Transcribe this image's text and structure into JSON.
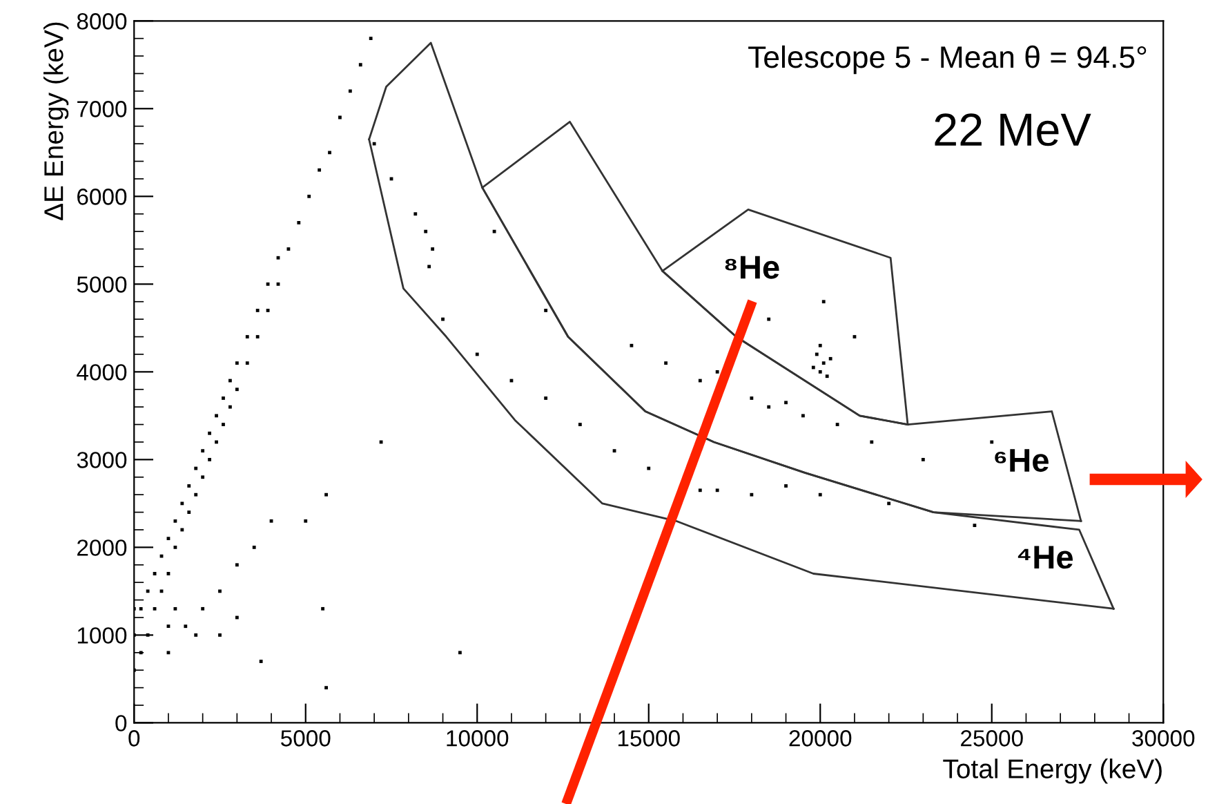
{
  "chart_data": {
    "type": "scatter",
    "title": "Telescope 5 - Mean θ = 94.5°",
    "subtitle": "22 MeV",
    "xlabel": "Total Energy (keV)",
    "ylabel": "ΔE Energy (keV)",
    "xlim": [
      0,
      30000
    ],
    "ylim": [
      0,
      8000
    ],
    "xticks": [
      0,
      5000,
      10000,
      15000,
      20000,
      25000,
      30000
    ],
    "yticks": [
      0,
      1000,
      2000,
      3000,
      4000,
      5000,
      6000,
      7000,
      8000
    ],
    "grid": false,
    "legend": false,
    "marker": "square",
    "annotations": [
      "⁸He",
      "⁶He",
      "⁴He"
    ],
    "series": [
      {
        "color": "#000000",
        "x": [
          0,
          0,
          0,
          200,
          200,
          400,
          400,
          600,
          600,
          800,
          800,
          1000,
          1000,
          1200,
          1200,
          1400,
          1400,
          1600,
          1600,
          1800,
          1800,
          2000,
          2000,
          2200,
          2200,
          2400,
          2400,
          2600,
          2600,
          2800,
          2800,
          3000,
          3000,
          3300,
          3300,
          3600,
          3600,
          3900,
          3900,
          4200,
          4200,
          4500,
          4800,
          5100,
          5400,
          5700,
          6000,
          6300,
          6600,
          6900,
          1000,
          1500,
          2000,
          2500,
          3000,
          3500,
          4000,
          1200,
          1800,
          2500,
          3000,
          1000,
          5500,
          5600,
          5000,
          7200,
          9500,
          3700,
          5600,
          7000,
          7500,
          8200,
          8500,
          8700,
          8600,
          9000,
          10000,
          11000,
          12000,
          13000,
          14000,
          15000,
          16500,
          17000,
          18000,
          19000,
          20000,
          22000,
          24500,
          10500,
          12000,
          14500,
          15500,
          16500,
          17000,
          18000,
          18500,
          19000,
          19500,
          20500,
          21500,
          23000,
          25000,
          19900,
          20000,
          20100,
          20200,
          20000,
          20300,
          19800,
          20100,
          18500,
          21000
        ],
        "values": [
          600,
          1000,
          1300,
          800,
          1300,
          1000,
          1500,
          1300,
          1700,
          1500,
          1900,
          1700,
          2100,
          2000,
          2300,
          2200,
          2500,
          2400,
          2700,
          2600,
          2900,
          2800,
          3100,
          3000,
          3300,
          3200,
          3500,
          3400,
          3700,
          3600,
          3900,
          3800,
          4100,
          4100,
          4400,
          4400,
          4700,
          4700,
          5000,
          5000,
          5300,
          5400,
          5700,
          6000,
          6300,
          6500,
          6900,
          7200,
          7500,
          7800,
          800,
          1100,
          1300,
          1500,
          1800,
          2000,
          2300,
          1300,
          1000,
          1000,
          1200,
          1100,
          1300,
          2600,
          2300,
          3200,
          800,
          700,
          400,
          6600,
          6200,
          5800,
          5600,
          5400,
          5200,
          4600,
          4200,
          3900,
          3700,
          3400,
          3100,
          2900,
          2650,
          2650,
          2600,
          2700,
          2600,
          2500,
          2250,
          5600,
          4700,
          4300,
          4100,
          3900,
          4000,
          3700,
          3600,
          3650,
          3500,
          3400,
          3200,
          3000,
          3200,
          4200,
          4000,
          4100,
          3950,
          4300,
          4150,
          4050,
          4800,
          4600,
          4400
        ]
      },
      {
        "type": "line",
        "marker": "none",
        "color": "#333333",
        "x": [
          6850,
          7350,
          8650,
          10150,
          12650,
          14900,
          16900,
          19550,
          23300,
          27550,
          28550
        ],
        "values": [
          6650,
          7250,
          7750,
          6100,
          4400,
          3550,
          3200,
          2850,
          2400,
          2200,
          1300
        ]
      },
      {
        "type": "line",
        "marker": "none",
        "color": "#333333",
        "x": [
          6850,
          7850,
          9100,
          11100,
          13650,
          15800,
          19800,
          28550
        ],
        "values": [
          6650,
          4950,
          4400,
          3450,
          2500,
          2300,
          1700,
          1300
        ]
      },
      {
        "type": "line",
        "marker": "none",
        "color": "#333333",
        "x": [
          10150,
          12700,
          15400,
          17550,
          21150,
          22550,
          26750,
          27600
        ],
        "values": [
          6100,
          6850,
          5150,
          4400,
          3500,
          3400,
          3550,
          2300
        ]
      },
      {
        "type": "line",
        "marker": "none",
        "color": "#333333",
        "x": [
          10150,
          12650,
          14900,
          16900,
          19550,
          23300,
          27600
        ],
        "values": [
          6100,
          4400,
          3550,
          3200,
          2850,
          2400,
          2300
        ]
      },
      {
        "type": "line",
        "marker": "none",
        "color": "#333333",
        "x": [
          15400,
          17900,
          22050,
          22550
        ],
        "values": [
          5150,
          5850,
          5300,
          3400
        ]
      },
      {
        "type": "line",
        "marker": "none",
        "color": "#333333",
        "x": [
          15400,
          17550,
          21150,
          22550
        ],
        "values": [
          5150,
          4400,
          3500,
          3400
        ]
      }
    ]
  }
}
